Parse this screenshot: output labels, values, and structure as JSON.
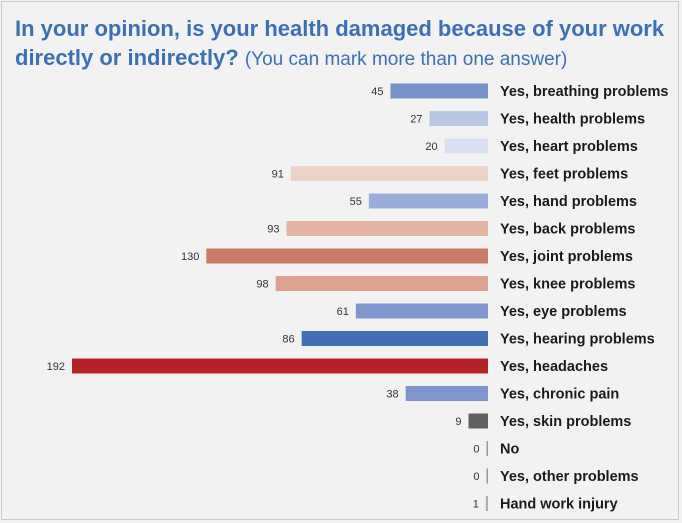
{
  "title": {
    "main": "In your opinion, is your health damaged because of your work directly or indirectly?",
    "note": "(You can mark more than one answer)"
  },
  "chart_data": {
    "type": "bar",
    "orientation": "horizontal",
    "title": "In your opinion, is your health damaged because of your work directly or indirectly? (You can mark more than one answer)",
    "xlabel": "",
    "ylabel": "",
    "xlim": [
      0,
      192
    ],
    "grid": false,
    "legend": "none",
    "categories": [
      "Yes, breathing problems",
      "Yes, health problems",
      "Yes, heart problems",
      "Yes, feet problems",
      "Yes, hand problems",
      "Yes, back problems",
      "Yes, joint problems",
      "Yes, knee problems",
      "Yes, eye problems",
      "Yes, hearing  problems",
      "Yes, headaches",
      "Yes, chronic pain",
      "Yes, skin problems",
      "No",
      "Yes, other problems",
      "Hand work injury"
    ],
    "values": [
      45,
      27,
      20,
      91,
      55,
      93,
      130,
      98,
      61,
      86,
      192,
      38,
      9,
      0,
      0,
      1
    ],
    "colors": [
      "#7591c9",
      "#b9c7e4",
      "#d9e0f1",
      "#edd2c8",
      "#9aadda",
      "#e3b4a2",
      "#c87a65",
      "#dca18f",
      "#7f97ce",
      "#3f6eb4",
      "#b72226",
      "#7e95cd",
      "#616161",
      "#9a9a9a",
      "#9a9a9a",
      "#b0b0b0"
    ]
  }
}
